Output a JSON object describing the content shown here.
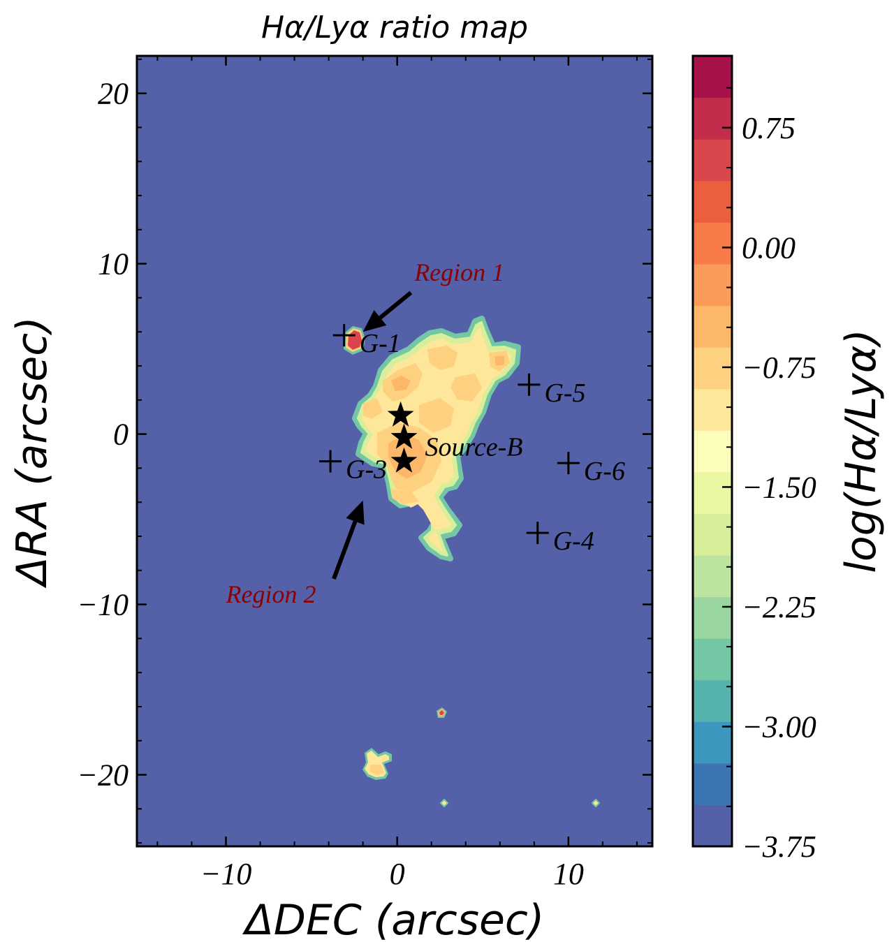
{
  "chart_data": {
    "type": "heatmap",
    "title": "Hα/Lyα ratio map",
    "xlabel": "ΔDEC (arcsec)",
    "ylabel": "ΔRA (arcsec)",
    "xlim": [
      -15.2,
      14.9
    ],
    "ylim": [
      -24.2,
      22.2
    ],
    "xticks": [
      -10,
      0,
      10
    ],
    "xtick_labels": [
      "−10",
      "0",
      "10"
    ],
    "yticks": [
      20,
      10,
      0,
      -10,
      -20
    ],
    "ytick_labels": [
      "20",
      "10",
      "0",
      "−10",
      "−20"
    ],
    "background_value": -3.75,
    "background_color": "#5460a8",
    "colorbar": {
      "label": "log(Hα/Lyα)",
      "range": [
        -3.75,
        1.2
      ],
      "ticks": [
        0.75,
        0.0,
        -0.75,
        -1.5,
        -2.25,
        -3.0,
        -3.75
      ],
      "tick_labels": [
        "0.75",
        "0.00",
        "−0.75",
        "−1.50",
        "−2.25",
        "−3.00",
        "−3.75"
      ],
      "levels": [
        "#5460a8",
        "#3d75b4",
        "#3d96bd",
        "#55b2ad",
        "#74c7a5",
        "#9ad69f",
        "#bce4a0",
        "#d7ef9b",
        "#ecf7a1",
        "#fdfebc",
        "#fee79a",
        "#fdd17f",
        "#fdb768",
        "#fb9a59",
        "#f67b49",
        "#ea603e",
        "#d9464b",
        "#c42c4b",
        "#a7124b"
      ]
    },
    "markers": [
      {
        "type": "plus",
        "name": "G-1",
        "x": -3.1,
        "y": 5.8
      },
      {
        "type": "plus",
        "name": "G-3",
        "x": -3.9,
        "y": -1.6
      },
      {
        "type": "plus",
        "name": "G-5",
        "x": 7.7,
        "y": 2.9
      },
      {
        "type": "plus",
        "name": "G-6",
        "x": 10.0,
        "y": -1.7
      },
      {
        "type": "plus",
        "name": "G-4",
        "x": 8.2,
        "y": -5.8
      },
      {
        "type": "star",
        "x": 0.2,
        "y": 1.1
      },
      {
        "type": "star",
        "x": 0.4,
        "y": -0.2
      },
      {
        "type": "star",
        "x": 0.4,
        "y": -1.6
      }
    ],
    "star_label": "Source-B",
    "annotations": [
      {
        "text": "Region 1",
        "text_x": 1.0,
        "text_y": 9.0,
        "arrow_from": [
          0.8,
          8.3
        ],
        "arrow_to": [
          -2.0,
          6.0
        ]
      },
      {
        "text": "Region 2",
        "text_x": -10.0,
        "text_y": -9.9,
        "arrow_from": [
          -3.7,
          -8.5
        ],
        "arrow_to": [
          -2.0,
          -3.9
        ]
      }
    ],
    "emission_blobs": [
      {
        "x": -2.5,
        "y": 5.6,
        "level": 1.0
      },
      {
        "x": 1.0,
        "y": 1.0,
        "level": -0.75
      },
      {
        "x": 3.5,
        "y": 3.0,
        "level": -0.75
      },
      {
        "x": 1.0,
        "y": -2.5,
        "level": -0.75
      },
      {
        "x": 2.3,
        "y": -5.5,
        "level": -0.5
      },
      {
        "x": -1.5,
        "y": -19.8,
        "level": -0.5
      },
      {
        "x": 2.5,
        "y": -16.3,
        "level": 1.0
      },
      {
        "x": 2.7,
        "y": -21.5,
        "level": 0.0
      },
      {
        "x": 11.6,
        "y": -21.5,
        "level": 0.0
      }
    ]
  }
}
